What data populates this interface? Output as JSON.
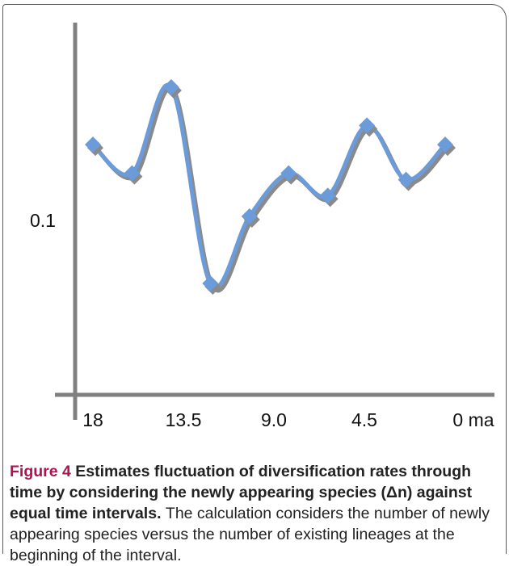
{
  "chart_data": {
    "type": "line",
    "x_tick_labels": [
      "18",
      "13.5",
      "9.0",
      "4.5",
      "0 ma"
    ],
    "y_tick_labels": [
      "0.1"
    ],
    "series": [
      {
        "x": [
          18,
          16,
          14,
          12,
          10,
          8,
          6,
          4,
          2,
          0
        ],
        "values": [
          0.135,
          0.117,
          0.171,
          0.048,
          0.09,
          0.117,
          0.103,
          0.147,
          0.113,
          0.135
        ]
      }
    ],
    "xlim": [
      19.5,
      -1.5
    ],
    "ylim": [
      0.0,
      0.2
    ],
    "colors": {
      "line": "#6b9bd8",
      "shadow": "#8a8a8a",
      "axis": "#808080"
    },
    "grid": false
  },
  "caption": {
    "label": "Figure 4",
    "title": "Estimates fluctuation of diversification rates through time by considering the newly appearing species (Δn) against equal time intervals.",
    "description": "The calculation considers the number of newly appearing species versus the number of existing lineages at the beginning of the interval."
  }
}
